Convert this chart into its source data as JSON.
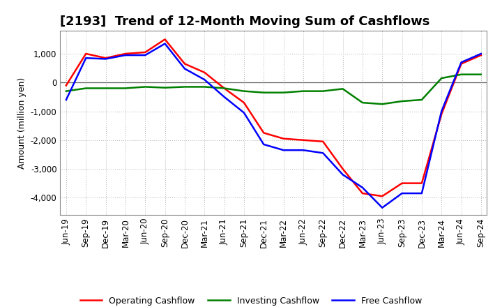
{
  "title": "[2193]  Trend of 12-Month Moving Sum of Cashflows",
  "ylabel": "Amount (million yen)",
  "background_color": "#ffffff",
  "grid_color": "#b0b0b0",
  "x_labels": [
    "Jun-19",
    "Sep-19",
    "Dec-19",
    "Mar-20",
    "Jun-20",
    "Sep-20",
    "Dec-20",
    "Mar-21",
    "Jun-21",
    "Sep-21",
    "Dec-21",
    "Mar-22",
    "Jun-22",
    "Sep-22",
    "Dec-22",
    "Mar-23",
    "Jun-23",
    "Sep-23",
    "Dec-23",
    "Mar-24",
    "Jun-24",
    "Sep-24"
  ],
  "operating_cashflow": [
    -100,
    1000,
    850,
    1000,
    1050,
    1500,
    650,
    350,
    -200,
    -700,
    -1750,
    -1950,
    -2000,
    -2050,
    -3000,
    -3850,
    -3950,
    -3500,
    -3500,
    -1100,
    650,
    950
  ],
  "investing_cashflow": [
    -300,
    -200,
    -200,
    -200,
    -150,
    -180,
    -150,
    -150,
    -200,
    -300,
    -350,
    -350,
    -300,
    -300,
    -220,
    -700,
    -750,
    -650,
    -600,
    150,
    280,
    280
  ],
  "free_cashflow": [
    -600,
    850,
    820,
    950,
    950,
    1350,
    480,
    100,
    -500,
    -1050,
    -2150,
    -2350,
    -2350,
    -2450,
    -3200,
    -3650,
    -4350,
    -3850,
    -3850,
    -1000,
    700,
    1000
  ],
  "operating_color": "#ff0000",
  "investing_color": "#008000",
  "free_color": "#0000ff",
  "ylim": [
    -4600,
    1800
  ],
  "yticks": [
    -4000,
    -3000,
    -2000,
    -1000,
    0,
    1000
  ],
  "line_width": 1.8,
  "title_fontsize": 13,
  "axis_fontsize": 9,
  "tick_fontsize": 8.5
}
